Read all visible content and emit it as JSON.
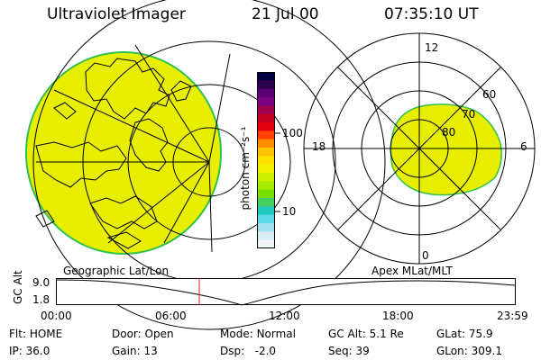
{
  "header": {
    "instrument": "Ultraviolet Imager",
    "date": "21 Jul 00",
    "time": "07:35:10 UT"
  },
  "colorbar": {
    "unit_label": "photon cm⁻²s⁻¹",
    "ticks": [
      "100",
      "10"
    ],
    "colors": [
      "#000040",
      "#2a004f",
      "#5b0072",
      "#7a0080",
      "#a00050",
      "#c00020",
      "#e00010",
      "#ff4000",
      "#ff8c00",
      "#ffc400",
      "#ffe000",
      "#f2f000",
      "#ccf000",
      "#a8ea00",
      "#78e000",
      "#44d060",
      "#20c8c0",
      "#5ad8e8",
      "#a0e0f0",
      "#d8eef4",
      "#f0f6f8"
    ]
  },
  "geo_map": {
    "label": "Geographic Lat/Lon",
    "fill_color": "#e8ee00",
    "edge_color": "#30c050"
  },
  "polar_plot": {
    "label": "Apex MLat/MLT",
    "lat_labels": [
      "80",
      "70",
      "60"
    ],
    "mlt_labels": {
      "top": "12",
      "bottom": "0",
      "left": "18",
      "right": "6"
    },
    "fill_color": "#e8ee00"
  },
  "timeline": {
    "ylabel": "GC Alt",
    "y_ticks": [
      "9.0",
      "1.8"
    ],
    "x_ticks": [
      "00:00",
      "06:00",
      "12:00",
      "18:00",
      "23:59"
    ],
    "marker_color": "#cc2020"
  },
  "status": {
    "row1": [
      {
        "key": "Flt:",
        "value": "HOME"
      },
      {
        "key": "Door:",
        "value": "Open"
      },
      {
        "key": "Mode:",
        "value": "Normal"
      },
      {
        "key": "GC Alt:",
        "value": "5.1 Re"
      },
      {
        "key": "GLat:",
        "value": "75.9"
      }
    ],
    "row2": [
      {
        "key": "IP:",
        "value": "36.0"
      },
      {
        "key": "Gain:",
        "value": "13"
      },
      {
        "key": "Dsp:",
        "value": "-2.0"
      },
      {
        "key": "Seq:",
        "value": "39"
      },
      {
        "key": "GLon:",
        "value": "309.1"
      }
    ]
  }
}
